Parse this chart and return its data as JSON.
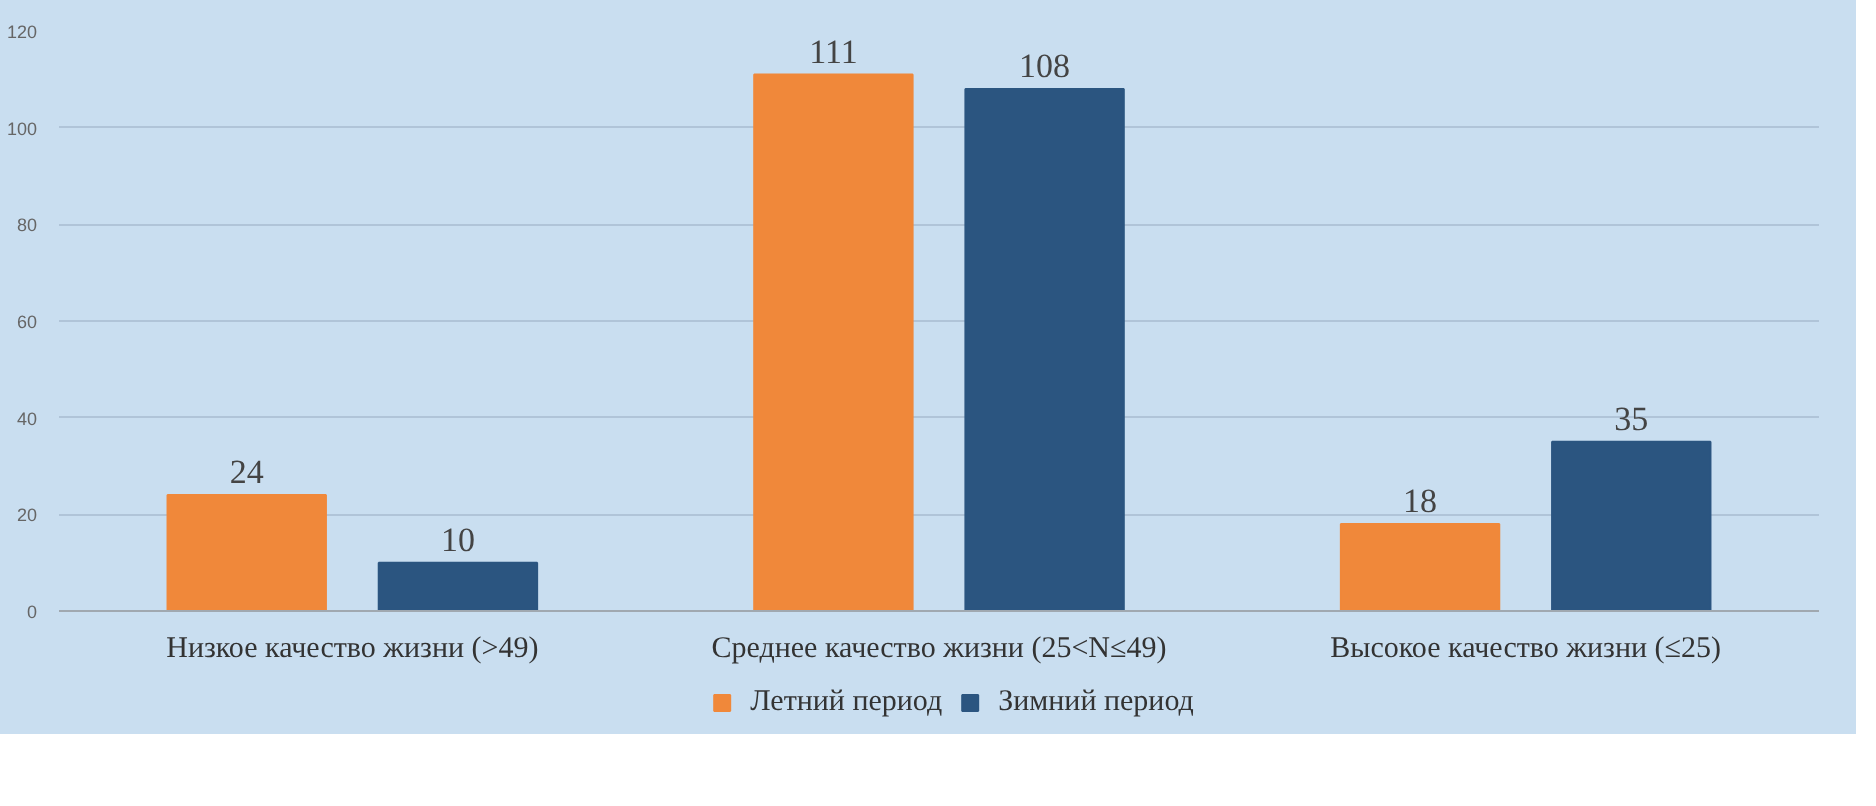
{
  "chart_data": {
    "type": "bar",
    "categories": [
      "Низкое качество жизни (>49)",
      "Среднее качество жизни (25<N≤49)",
      "Высокое качество жизни (≤25)"
    ],
    "series": [
      {
        "name": "Летний период",
        "color": "#f0883a",
        "values": [
          24,
          111,
          18
        ]
      },
      {
        "name": "Зимний период",
        "color": "#2b5580",
        "values": [
          10,
          108,
          35
        ]
      }
    ],
    "ylim": [
      0,
      120
    ],
    "yticks": [
      0,
      20,
      40,
      60,
      80,
      100,
      120
    ],
    "grid": "y",
    "legend": "bottom",
    "data_labels": true
  }
}
